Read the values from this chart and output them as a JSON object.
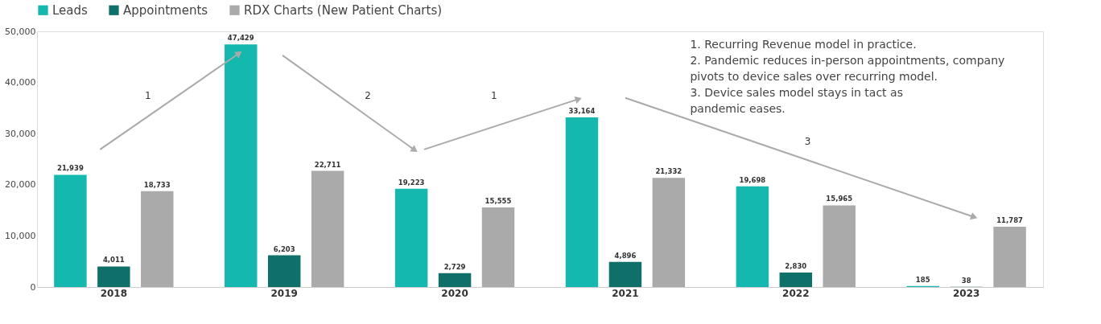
{
  "chart_data": {
    "type": "bar",
    "categories": [
      "2018",
      "2019",
      "2020",
      "2021",
      "2022",
      "2023"
    ],
    "series": [
      {
        "name": "Leads",
        "color": "#14b8ae",
        "values": [
          21939,
          47429,
          19223,
          33164,
          19698,
          185
        ],
        "value_labels": [
          "21,939",
          "47,429",
          "19,223",
          "33,164",
          "19,698",
          "185"
        ]
      },
      {
        "name": "Appointments",
        "color": "#0e7069",
        "values": [
          4011,
          6203,
          2729,
          4896,
          2830,
          38
        ],
        "value_labels": [
          "4,011",
          "6,203",
          "2,729",
          "4,896",
          "2,830",
          "38"
        ]
      },
      {
        "name": "RDX Charts (New Patient Charts)",
        "color": "#aaaaaa",
        "values": [
          18733,
          22711,
          15555,
          21332,
          15965,
          11787
        ],
        "value_labels": [
          "18,733",
          "22,711",
          "15,555",
          "21,332",
          "15,965",
          "11,787"
        ]
      }
    ],
    "ylim": [
      0,
      50000
    ],
    "yticks": [
      {
        "value": 0,
        "label": "0"
      },
      {
        "value": 10000,
        "label": "10,000"
      },
      {
        "value": 20000,
        "label": "20,000"
      },
      {
        "value": 30000,
        "label": "30,000"
      },
      {
        "value": 40000,
        "label": "40,000"
      },
      {
        "value": 50000,
        "label": "50,000"
      }
    ],
    "legend": "top",
    "annotations": [
      "1",
      "2",
      "1",
      "3",
      "1.  Recurring Revenue model in practice.\n2.  Pandemic reduces in-person appointments, company\n     pivots to device sales over recurring model.\n3.  Device sales model stays in tact as\n     pandemic eases."
    ]
  }
}
